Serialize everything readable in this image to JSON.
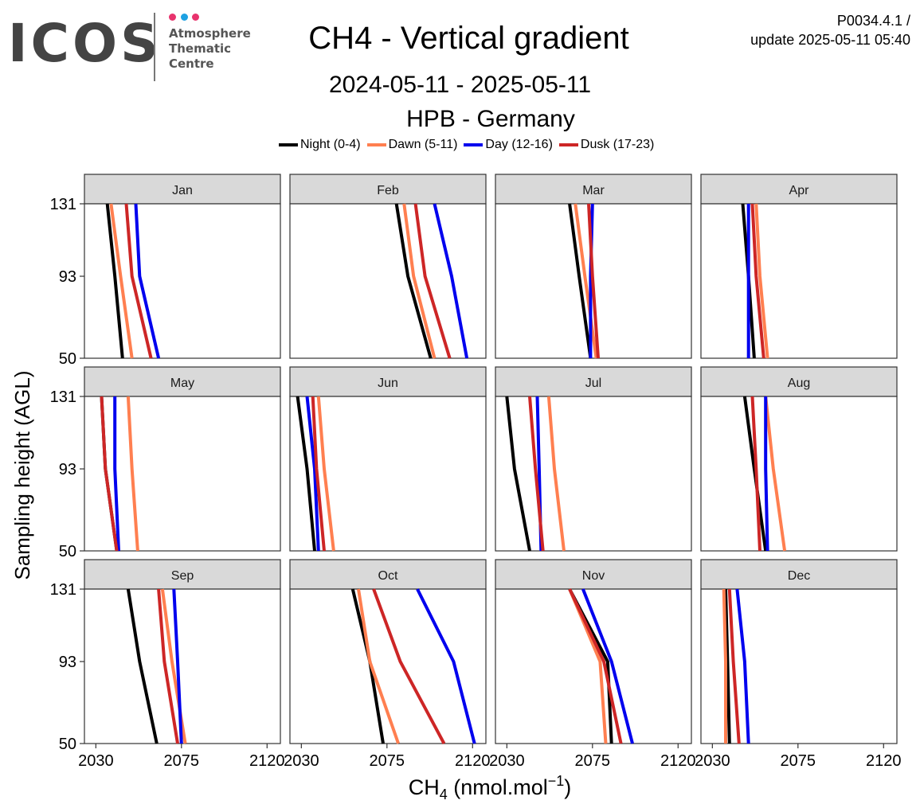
{
  "header": {
    "logo_text": "ICOS",
    "logo_subtitle_lines": [
      "Atmosphere",
      "Thematic",
      "Centre"
    ],
    "logo_dot_colors": [
      "#e8336d",
      "#1da1e2",
      "#e8336d"
    ],
    "version_line1": "P0034.4.1 /",
    "version_line2": "update  2025-05-11 05:40"
  },
  "chart_data": {
    "type": "line",
    "title": "CH4 - Vertical gradient",
    "subtitle": "2024-05-11 - 2025-05-11",
    "station": "HPB - Germany",
    "xlabel_main": "CH",
    "xlabel_sub": "4",
    "xlabel_unit": " (nmol.mol",
    "xlabel_sup": "−1",
    "xlabel_close": ")",
    "ylabel": "Sampling height (AGL)",
    "xlim": [
      2024,
      2127
    ],
    "ylim": [
      50,
      131
    ],
    "xticks": [
      2030,
      2075,
      2120
    ],
    "yticks": [
      50,
      93,
      131
    ],
    "heights": [
      131,
      93,
      50
    ],
    "grid": false,
    "legend_position": "top",
    "series": [
      {
        "key": "night",
        "name": "Night (0-4)",
        "color": "#000000"
      },
      {
        "key": "dawn",
        "name": "Dawn (5-11)",
        "color": "#ff7f50"
      },
      {
        "key": "day",
        "name": "Day (12-16)",
        "color": "#0000ee"
      },
      {
        "key": "dusk",
        "name": "Dusk (17-23)",
        "color": "#cd2626"
      }
    ],
    "panels": [
      {
        "month": "Jan",
        "night": [
          2036,
          2040,
          2044
        ],
        "dawn": [
          2038,
          2043,
          2049
        ],
        "day": [
          2051,
          2053,
          2063
        ],
        "dusk": [
          2046,
          2049,
          2059
        ]
      },
      {
        "month": "Feb",
        "night": [
          2080,
          2086,
          2098
        ],
        "dawn": [
          2084,
          2089,
          2100
        ],
        "day": [
          2100,
          2109,
          2117
        ],
        "dusk": [
          2090,
          2095,
          2108
        ]
      },
      {
        "month": "Mar",
        "night": [
          2063,
          2068,
          2074
        ],
        "dawn": [
          2066,
          2071,
          2077
        ],
        "day": [
          2075,
          2074,
          2074
        ],
        "dusk": [
          2073,
          2075,
          2078
        ]
      },
      {
        "month": "Apr",
        "night": [
          2046,
          2049,
          2052
        ],
        "dawn": [
          2053,
          2055,
          2059
        ],
        "day": [
          2049,
          2049,
          2049
        ],
        "dusk": [
          2051,
          2053,
          2057
        ]
      },
      {
        "month": "May",
        "night": [
          2033,
          2035,
          2041
        ],
        "dawn": [
          2047,
          2049,
          2052
        ],
        "day": [
          2040,
          2040,
          2042
        ],
        "dusk": [
          2033,
          2035,
          2041
        ]
      },
      {
        "month": "Jun",
        "night": [
          2028,
          2033,
          2037
        ],
        "dawn": [
          2039,
          2042,
          2047
        ],
        "day": [
          2033,
          2037,
          2039
        ],
        "dusk": [
          2036,
          2038,
          2042
        ]
      },
      {
        "month": "Jul",
        "night": [
          2030,
          2034,
          2042
        ],
        "dawn": [
          2052,
          2055,
          2060
        ],
        "day": [
          2046,
          2047,
          2048
        ],
        "dusk": [
          2042,
          2045,
          2049
        ]
      },
      {
        "month": "Aug",
        "night": [
          2047,
          2052,
          2058
        ],
        "dawn": [
          2058,
          2062,
          2068
        ],
        "day": [
          2058,
          2058,
          2059
        ],
        "dusk": [
          2051,
          2053,
          2055
        ]
      },
      {
        "month": "Sep",
        "night": [
          2047,
          2053,
          2062
        ],
        "dawn": [
          2065,
          2070,
          2077
        ],
        "day": [
          2071,
          2073,
          2075
        ],
        "dusk": [
          2063,
          2066,
          2073
        ]
      },
      {
        "month": "Oct",
        "night": [
          2057,
          2066,
          2073
        ],
        "dawn": [
          2060,
          2066,
          2081
        ],
        "day": [
          2091,
          2110,
          2121
        ],
        "dusk": [
          2068,
          2082,
          2105
        ]
      },
      {
        "month": "Nov",
        "night": [
          2063,
          2083,
          2085
        ],
        "dawn": [
          2063,
          2079,
          2082
        ],
        "day": [
          2070,
          2085,
          2096
        ],
        "dusk": [
          2063,
          2081,
          2090
        ]
      },
      {
        "month": "Dec",
        "night": [
          2037,
          2038,
          2039
        ],
        "dawn": [
          2036,
          2037,
          2037
        ],
        "day": [
          2043,
          2047,
          2049
        ],
        "dusk": [
          2039,
          2041,
          2044
        ]
      }
    ]
  }
}
